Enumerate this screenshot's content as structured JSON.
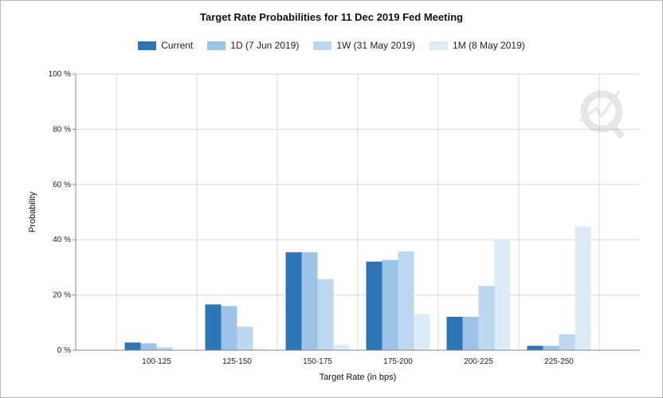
{
  "chart_data": {
    "type": "bar",
    "title": "Target Rate Probabilities for 11 Dec 2019 Fed Meeting",
    "xlabel": "Target Rate (in bps)",
    "ylabel": "Probability",
    "ylim": [
      0,
      100
    ],
    "yticks": [
      "0 %",
      "20 %",
      "40 %",
      "60 %",
      "80 %",
      "100 %"
    ],
    "ytick_values": [
      0,
      20,
      40,
      60,
      80,
      100
    ],
    "categories": [
      "100-125",
      "125-150",
      "150-175",
      "175-200",
      "200-225",
      "225-250"
    ],
    "grid": true,
    "legend_position": "top-center",
    "series": [
      {
        "name": "Current",
        "color": "#2e75b6",
        "values": [
          2.8,
          16.6,
          35.5,
          32.1,
          12.1,
          1.6
        ]
      },
      {
        "name": "1D (7 Jun 2019)",
        "color": "#9dc3e6",
        "values": [
          2.5,
          16.0,
          35.5,
          32.7,
          12.1,
          1.6
        ]
      },
      {
        "name": "1W (31 May 2019)",
        "color": "#bdd7ee",
        "values": [
          1.1,
          8.5,
          25.8,
          35.8,
          23.3,
          5.8
        ]
      },
      {
        "name": "1M (8 May 2019)",
        "color": "#ddebf7",
        "values": [
          0.1,
          0.4,
          1.9,
          13.1,
          39.9,
          44.8
        ]
      }
    ]
  }
}
